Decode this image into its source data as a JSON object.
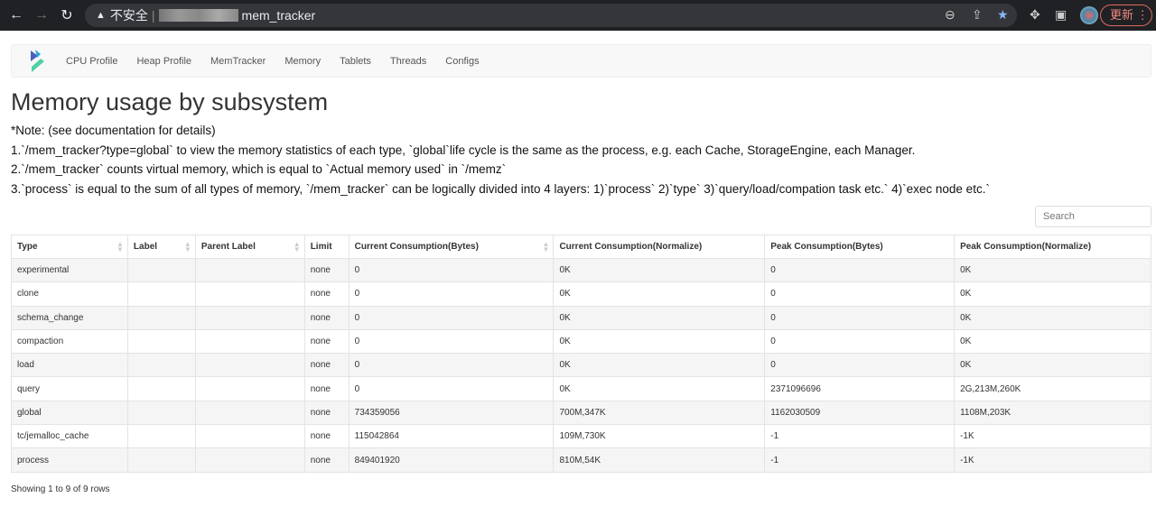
{
  "browser": {
    "security_label": "不安全",
    "url_suffix": "mem_tracker",
    "update_label": "更新"
  },
  "nav": {
    "items": [
      "CPU Profile",
      "Heap Profile",
      "MemTracker",
      "Memory",
      "Tablets",
      "Threads",
      "Configs"
    ]
  },
  "page": {
    "title": "Memory usage by subsystem",
    "notes": [
      "*Note: (see documentation for details)",
      "1.`/mem_tracker?type=global` to view the memory statistics of each type, `global`life cycle is the same as the process, e.g. each Cache, StorageEngine, each Manager.",
      "2.`/mem_tracker` counts virtual memory, which is equal to `Actual memory used` in `/memz`",
      "3.`process` is equal to the sum of all types of memory, `/mem_tracker` can be logically divided into 4 layers: 1)`process` 2)`type` 3)`query/load/compation task etc.` 4)`exec node etc.`"
    ]
  },
  "search": {
    "placeholder": "Search"
  },
  "table": {
    "columns": [
      "Type",
      "Label",
      "Parent Label",
      "Limit",
      "Current Consumption(Bytes)",
      "Current Consumption(Normalize)",
      "Peak Consumption(Bytes)",
      "Peak Consumption(Normalize)"
    ],
    "rows": [
      [
        "experimental",
        "",
        "",
        "none",
        "0",
        "0K",
        "0",
        "0K"
      ],
      [
        "clone",
        "",
        "",
        "none",
        "0",
        "0K",
        "0",
        "0K"
      ],
      [
        "schema_change",
        "",
        "",
        "none",
        "0",
        "0K",
        "0",
        "0K"
      ],
      [
        "compaction",
        "",
        "",
        "none",
        "0",
        "0K",
        "0",
        "0K"
      ],
      [
        "load",
        "",
        "",
        "none",
        "0",
        "0K",
        "0",
        "0K"
      ],
      [
        "query",
        "",
        "",
        "none",
        "0",
        "0K",
        "2371096696",
        "2G,213M,260K"
      ],
      [
        "global",
        "",
        "",
        "none",
        "734359056",
        "700M,347K",
        "1162030509",
        "1108M,203K"
      ],
      [
        "tc/jemalloc_cache",
        "",
        "",
        "none",
        "115042864",
        "109M,730K",
        "-1",
        "-1K"
      ],
      [
        "process",
        "",
        "",
        "none",
        "849401920",
        "810M,54K",
        "-1",
        "-1K"
      ]
    ]
  },
  "footer": {
    "text": "Showing 1 to 9 of 9 rows"
  }
}
